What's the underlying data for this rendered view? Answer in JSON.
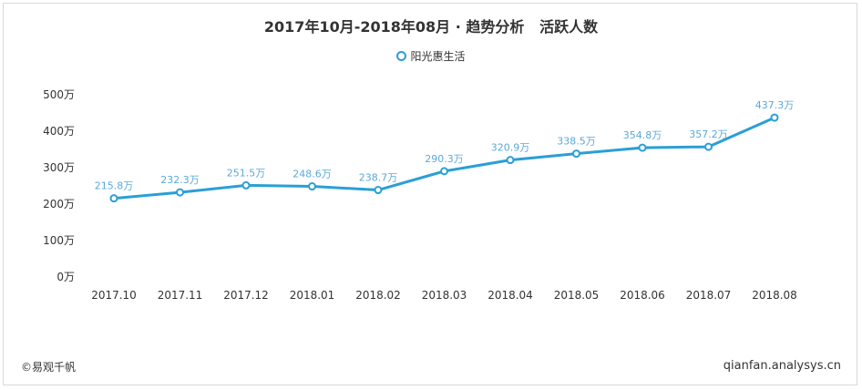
{
  "header": {
    "title": "2017年10月-2018年08月 · 趋势分析   活跃人数"
  },
  "legend": {
    "series_name": "阳光惠生活"
  },
  "footer": {
    "source": "©易观千帆",
    "site": "qianfan.analysys.cn"
  },
  "chart_data": {
    "type": "line",
    "title": "2017年10月-2018年08月 · 趋势分析   活跃人数",
    "xlabel": "",
    "ylabel": "",
    "x": [
      "2017.10",
      "2017.11",
      "2017.12",
      "2018.01",
      "2018.02",
      "2018.03",
      "2018.04",
      "2018.05",
      "2018.06",
      "2018.07",
      "2018.08"
    ],
    "series": [
      {
        "name": "阳光惠生活",
        "values": [
          215.8,
          232.3,
          251.5,
          248.6,
          238.7,
          290.3,
          320.9,
          338.5,
          354.8,
          357.2,
          437.3
        ],
        "labels": [
          "215.8万",
          "232.3万",
          "251.5万",
          "248.6万",
          "238.7万",
          "290.3万",
          "320.9万",
          "338.5万",
          "354.8万",
          "357.2万",
          "437.3万"
        ]
      }
    ],
    "ylim": [
      0,
      500
    ],
    "yticks": [
      0,
      100,
      200,
      300,
      400,
      500
    ],
    "ytick_labels": [
      "0万",
      "100万",
      "200万",
      "300万",
      "400万",
      "500万"
    ],
    "grid": false,
    "legend_position": "top-center",
    "line_color": "#2a9fd6",
    "label_color": "#5aa9d6"
  }
}
